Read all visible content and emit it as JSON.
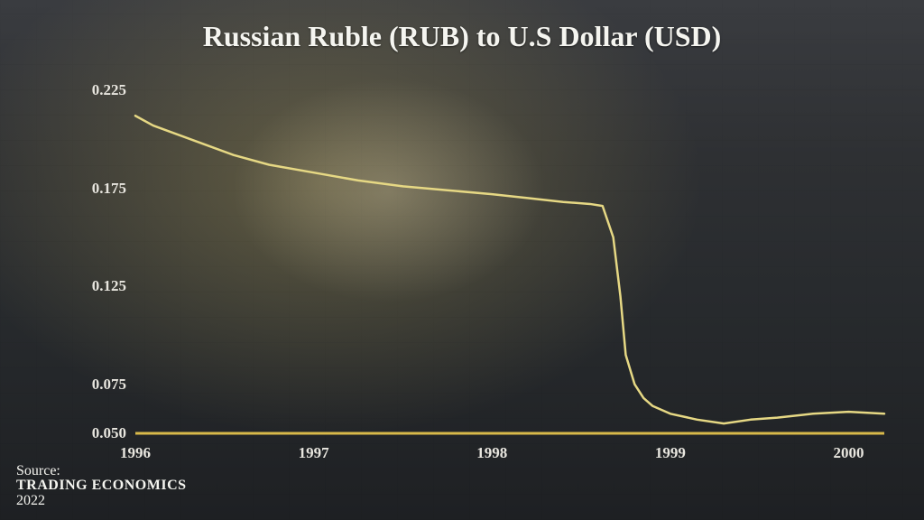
{
  "title": "Russian Ruble (RUB) to U.S Dollar (USD)",
  "source": {
    "label": "Source:",
    "name": "TRADING ECONOMICS",
    "year": "2022"
  },
  "chart": {
    "type": "line",
    "x_start": 1996.0,
    "x_end": 2000.2,
    "x_ticks": [
      1996,
      1997,
      1998,
      1999,
      2000
    ],
    "ylim": [
      0.05,
      0.225
    ],
    "y_ticks": [
      0.05,
      0.075,
      0.125,
      0.175,
      0.225
    ],
    "y_tick_labels": [
      "0.050",
      "0.075",
      "0.125",
      "0.175",
      "0.225"
    ],
    "series": {
      "x": [
        1996.0,
        1996.1,
        1996.25,
        1996.4,
        1996.55,
        1996.75,
        1997.0,
        1997.25,
        1997.5,
        1997.75,
        1998.0,
        1998.2,
        1998.4,
        1998.55,
        1998.62,
        1998.68,
        1998.72,
        1998.75,
        1998.8,
        1998.85,
        1998.9,
        1999.0,
        1999.15,
        1999.3,
        1999.45,
        1999.6,
        1999.8,
        2000.0,
        2000.2
      ],
      "y": [
        0.212,
        0.207,
        0.202,
        0.197,
        0.192,
        0.187,
        0.183,
        0.179,
        0.176,
        0.174,
        0.172,
        0.17,
        0.168,
        0.167,
        0.166,
        0.15,
        0.12,
        0.09,
        0.075,
        0.068,
        0.064,
        0.06,
        0.057,
        0.055,
        0.057,
        0.058,
        0.06,
        0.061,
        0.06
      ]
    },
    "line_color": "#e6d884",
    "line_width": 2.5,
    "baseline_color": "#d9b94a",
    "baseline_width": 3,
    "text_color": "#e8e6df",
    "title_fontsize": 32,
    "tick_fontsize": 17,
    "source_fontsize": 16
  }
}
